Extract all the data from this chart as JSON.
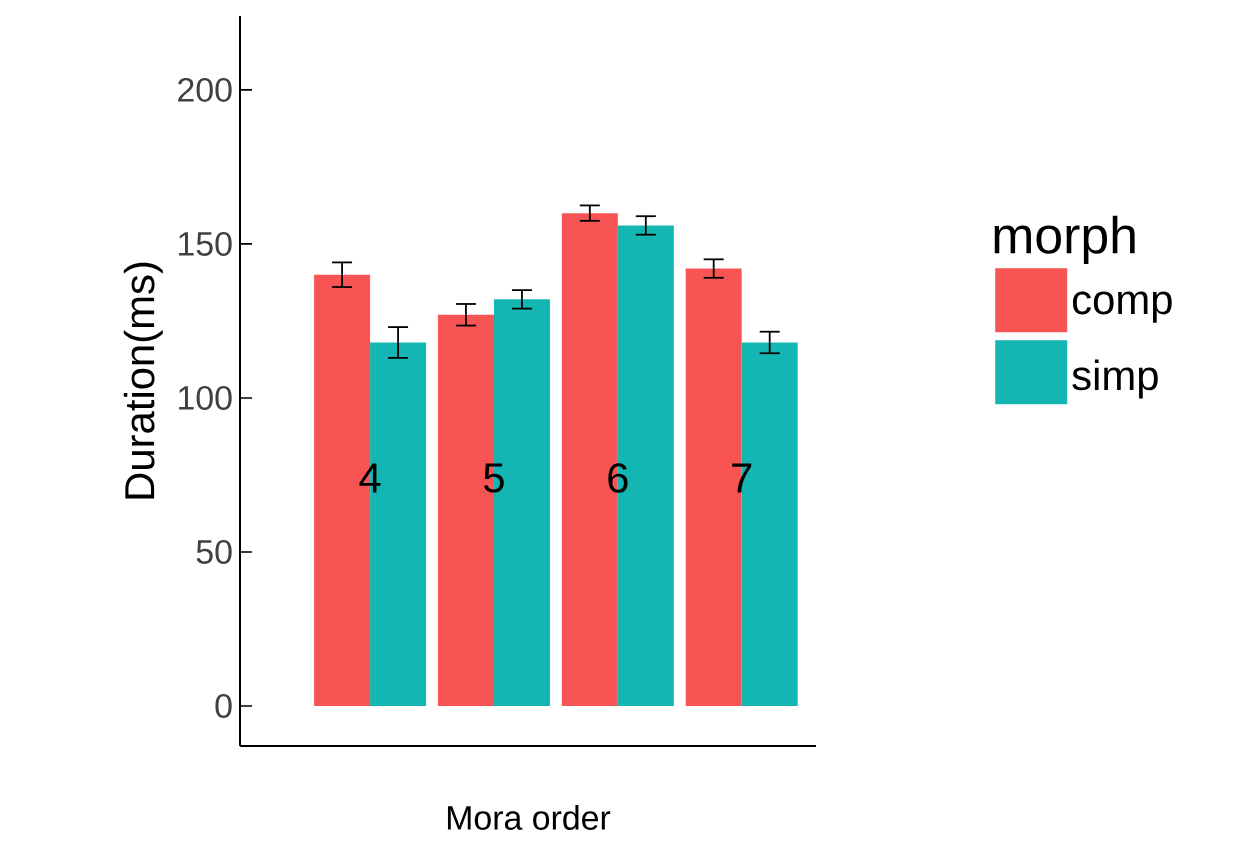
{
  "chart_data": {
    "type": "bar",
    "xlabel": "Mora order",
    "ylabel": "Duration(ms)",
    "legend_title": "morph",
    "legend": "right",
    "categories": [
      "4",
      "5",
      "6",
      "7"
    ],
    "series": [
      {
        "name": "comp",
        "color": "#f95454",
        "values": [
          140,
          127,
          160,
          142
        ],
        "errors": [
          4,
          3.5,
          2.5,
          3
        ]
      },
      {
        "name": "simp",
        "color": "#13b6b3",
        "values": [
          118,
          132,
          156,
          118
        ],
        "errors": [
          5,
          3,
          3,
          3.5
        ]
      }
    ],
    "ylim": [
      -13,
      224
    ],
    "yticks": [
      0,
      50,
      100,
      150,
      200
    ]
  }
}
